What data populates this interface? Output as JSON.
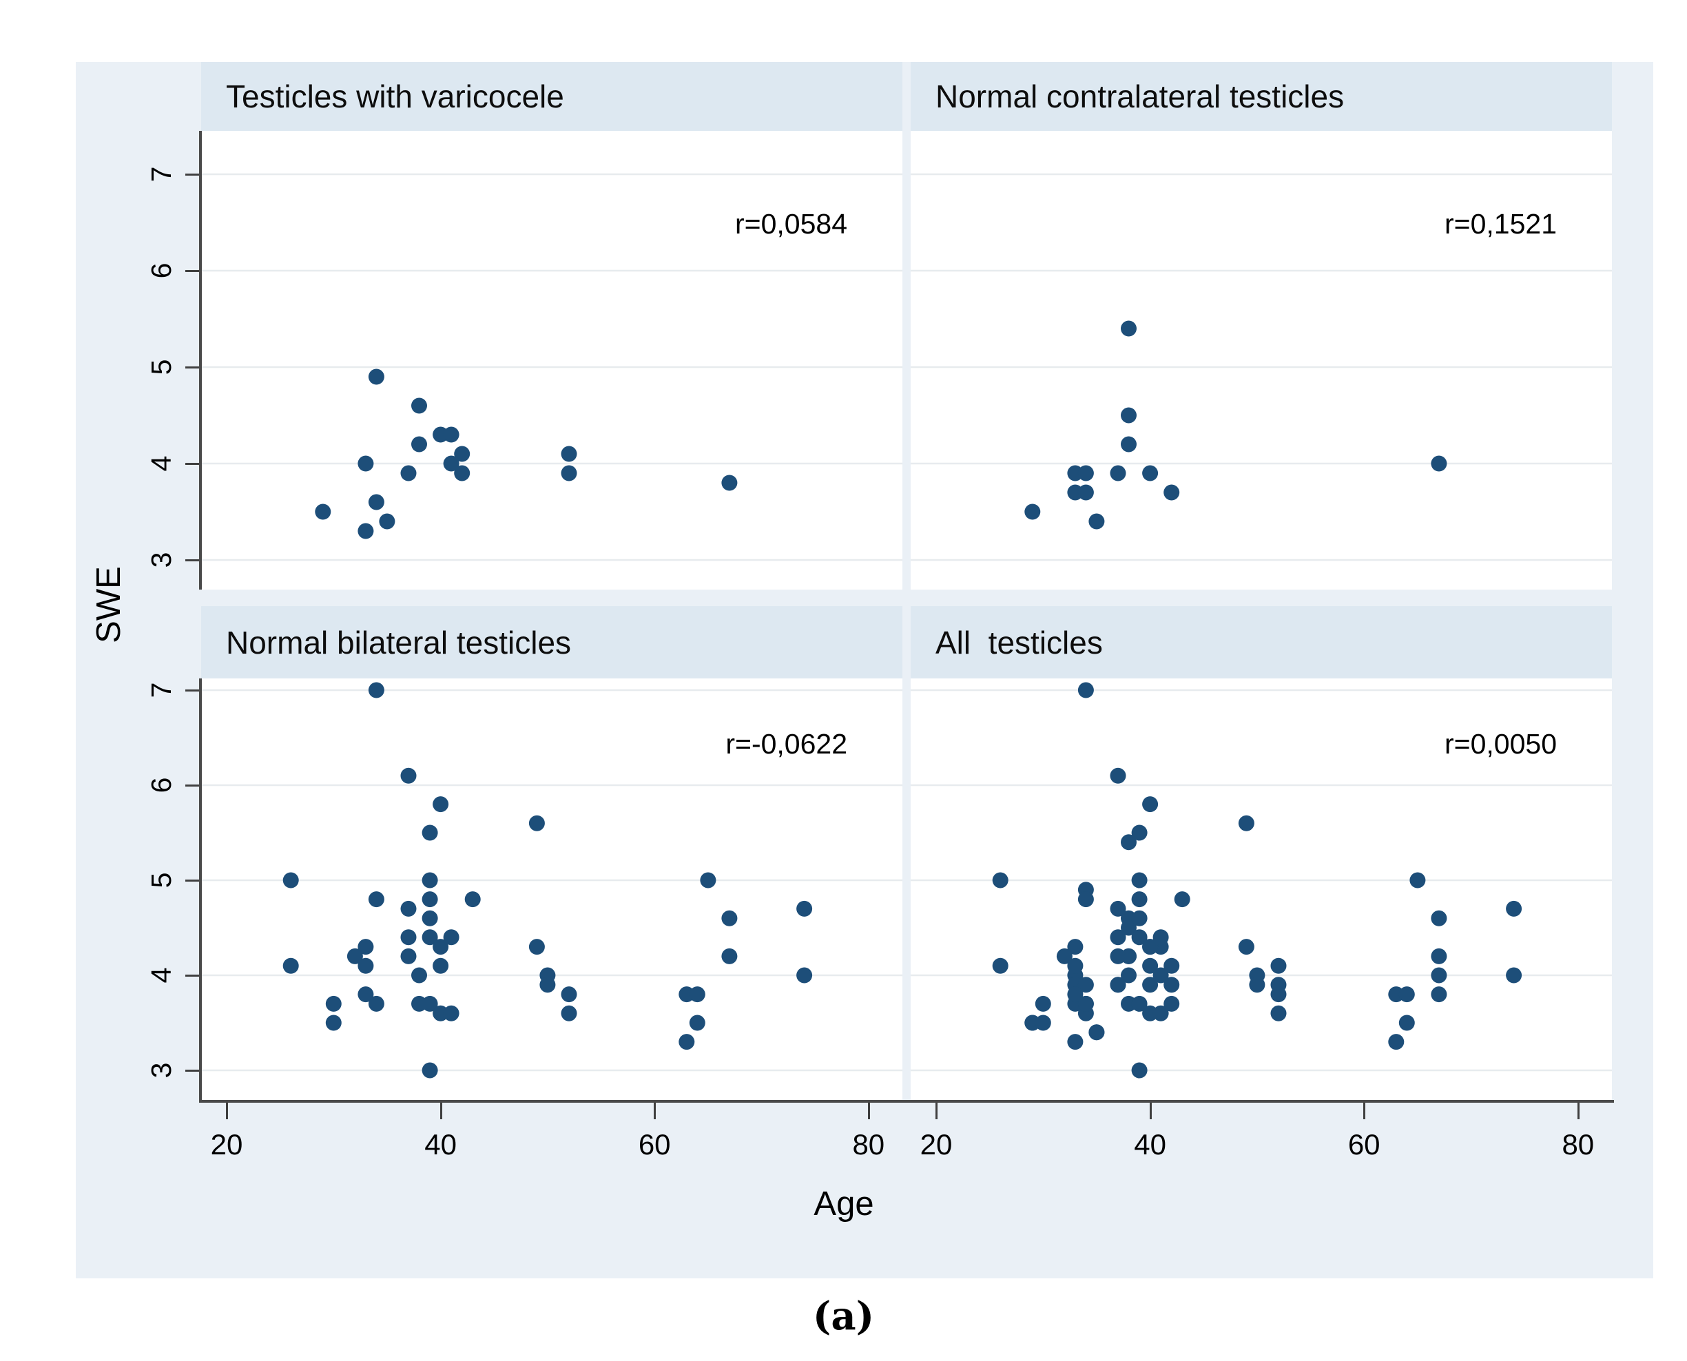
{
  "caption": "(a)",
  "colors": {
    "figure_bg": "#eaf0f6",
    "band_bg": "#dde8f1",
    "plot_bg": "#ffffff",
    "gridline": "#e7ebee",
    "axis": "#3f3f3f",
    "dot": "#1d4e79"
  },
  "chart_data": {
    "type": "scatter",
    "xlabel": "Age",
    "ylabel": "SWE",
    "x_ticks": [
      20,
      40,
      60,
      80
    ],
    "y_ticks": [
      7,
      6,
      5,
      4,
      3
    ],
    "xlim": [
      17,
      83
    ],
    "ylim": [
      2.7,
      7.45
    ],
    "grid": "horizontal-only",
    "legend": "none",
    "panels": [
      {
        "title": "Testicles with varicocele",
        "r_label": "r=0,0584",
        "row": 0,
        "col": 0,
        "points": [
          [
            29,
            3.5
          ],
          [
            33,
            4.0
          ],
          [
            33,
            3.3
          ],
          [
            34,
            4.9
          ],
          [
            34,
            3.6
          ],
          [
            35,
            3.4
          ],
          [
            37,
            3.9
          ],
          [
            38,
            4.6
          ],
          [
            38,
            4.2
          ],
          [
            40,
            4.3
          ],
          [
            41,
            4.3
          ],
          [
            41,
            4.0
          ],
          [
            42,
            4.1
          ],
          [
            42,
            3.9
          ],
          [
            52,
            4.1
          ],
          [
            52,
            3.9
          ],
          [
            67,
            3.8
          ]
        ]
      },
      {
        "title": "Normal contralateral testicles",
        "r_label": "r=0,1521",
        "row": 0,
        "col": 1,
        "points": [
          [
            29,
            3.5
          ],
          [
            33,
            3.9
          ],
          [
            33,
            3.7
          ],
          [
            34,
            3.9
          ],
          [
            34,
            3.7
          ],
          [
            35,
            3.4
          ],
          [
            37,
            3.9
          ],
          [
            38,
            5.4
          ],
          [
            38,
            4.5
          ],
          [
            38,
            4.2
          ],
          [
            40,
            3.9
          ],
          [
            42,
            3.7
          ],
          [
            67,
            4.0
          ]
        ]
      },
      {
        "title": "Normal bilateral testicles",
        "r_label": "r=-0,0622",
        "row": 1,
        "col": 0,
        "points": [
          [
            26,
            5.0
          ],
          [
            26,
            4.1
          ],
          [
            30,
            3.7
          ],
          [
            30,
            3.5
          ],
          [
            32,
            4.2
          ],
          [
            33,
            4.3
          ],
          [
            33,
            4.1
          ],
          [
            33,
            3.8
          ],
          [
            34,
            7.0
          ],
          [
            34,
            4.8
          ],
          [
            34,
            3.7
          ],
          [
            37,
            6.1
          ],
          [
            37,
            4.7
          ],
          [
            37,
            4.4
          ],
          [
            37,
            4.2
          ],
          [
            38,
            4.0
          ],
          [
            38,
            3.7
          ],
          [
            39,
            5.5
          ],
          [
            39,
            5.0
          ],
          [
            39,
            4.8
          ],
          [
            39,
            4.6
          ],
          [
            39,
            4.4
          ],
          [
            39,
            3.7
          ],
          [
            39,
            3.0
          ],
          [
            40,
            5.8
          ],
          [
            40,
            4.3
          ],
          [
            40,
            4.1
          ],
          [
            40,
            3.6
          ],
          [
            41,
            4.4
          ],
          [
            41,
            3.6
          ],
          [
            43,
            4.8
          ],
          [
            49,
            5.6
          ],
          [
            49,
            4.3
          ],
          [
            50,
            4.0
          ],
          [
            50,
            3.9
          ],
          [
            52,
            3.8
          ],
          [
            52,
            3.6
          ],
          [
            63,
            3.8
          ],
          [
            63,
            3.3
          ],
          [
            64,
            3.8
          ],
          [
            64,
            3.5
          ],
          [
            65,
            5.0
          ],
          [
            67,
            4.6
          ],
          [
            67,
            4.2
          ],
          [
            74,
            4.7
          ],
          [
            74,
            4.0
          ]
        ]
      },
      {
        "title": "All  testicles",
        "r_label": "r=0,0050",
        "row": 1,
        "col": 1,
        "points": [
          [
            29,
            3.5
          ],
          [
            33,
            4.0
          ],
          [
            33,
            3.3
          ],
          [
            34,
            4.9
          ],
          [
            34,
            3.6
          ],
          [
            35,
            3.4
          ],
          [
            37,
            3.9
          ],
          [
            38,
            4.6
          ],
          [
            38,
            4.2
          ],
          [
            40,
            4.3
          ],
          [
            41,
            4.3
          ],
          [
            41,
            4.0
          ],
          [
            42,
            4.1
          ],
          [
            42,
            3.9
          ],
          [
            52,
            4.1
          ],
          [
            52,
            3.9
          ],
          [
            67,
            3.8
          ],
          [
            29,
            3.5
          ],
          [
            33,
            3.9
          ],
          [
            33,
            3.7
          ],
          [
            34,
            3.9
          ],
          [
            34,
            3.7
          ],
          [
            35,
            3.4
          ],
          [
            37,
            3.9
          ],
          [
            38,
            5.4
          ],
          [
            38,
            4.5
          ],
          [
            38,
            4.2
          ],
          [
            40,
            3.9
          ],
          [
            42,
            3.7
          ],
          [
            67,
            4.0
          ],
          [
            26,
            5.0
          ],
          [
            26,
            4.1
          ],
          [
            30,
            3.7
          ],
          [
            30,
            3.5
          ],
          [
            32,
            4.2
          ],
          [
            33,
            4.3
          ],
          [
            33,
            4.1
          ],
          [
            33,
            3.8
          ],
          [
            34,
            7.0
          ],
          [
            34,
            4.8
          ],
          [
            34,
            3.7
          ],
          [
            37,
            6.1
          ],
          [
            37,
            4.7
          ],
          [
            37,
            4.4
          ],
          [
            37,
            4.2
          ],
          [
            38,
            4.0
          ],
          [
            38,
            3.7
          ],
          [
            39,
            5.5
          ],
          [
            39,
            5.0
          ],
          [
            39,
            4.8
          ],
          [
            39,
            4.6
          ],
          [
            39,
            4.4
          ],
          [
            39,
            3.7
          ],
          [
            39,
            3.0
          ],
          [
            40,
            5.8
          ],
          [
            40,
            4.3
          ],
          [
            40,
            4.1
          ],
          [
            40,
            3.6
          ],
          [
            41,
            4.4
          ],
          [
            41,
            3.6
          ],
          [
            43,
            4.8
          ],
          [
            49,
            5.6
          ],
          [
            49,
            4.3
          ],
          [
            50,
            4.0
          ],
          [
            50,
            3.9
          ],
          [
            52,
            3.8
          ],
          [
            52,
            3.6
          ],
          [
            63,
            3.8
          ],
          [
            63,
            3.3
          ],
          [
            64,
            3.8
          ],
          [
            64,
            3.5
          ],
          [
            65,
            5.0
          ],
          [
            67,
            4.6
          ],
          [
            67,
            4.2
          ],
          [
            74,
            4.7
          ],
          [
            74,
            4.0
          ]
        ]
      }
    ]
  }
}
